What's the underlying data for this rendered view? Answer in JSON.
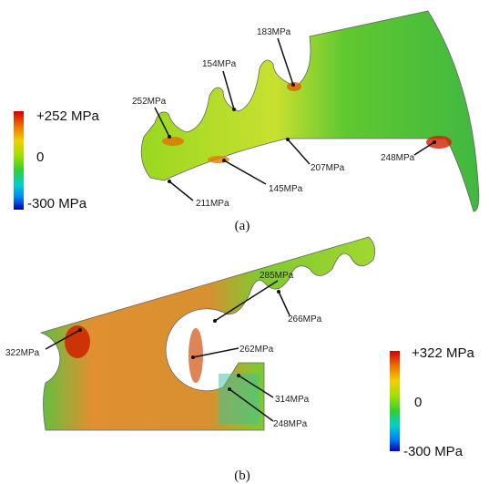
{
  "panels": [
    {
      "label": "(a)",
      "legend": {
        "max": "+252 MPa",
        "mid": "0",
        "min": "-300 MPa"
      },
      "annotations": [
        "252MPa",
        "154MPa",
        "183MPa",
        "248MPa",
        "207MPa",
        "145MPa",
        "211MPa"
      ]
    },
    {
      "label": "(b)",
      "legend": {
        "max": "+322 MPa",
        "mid": "0",
        "min": "-300 MPa"
      },
      "annotations": [
        "285MPa",
        "266MPa",
        "322MPa",
        "262MPa",
        "314MPa",
        "248MPa"
      ]
    }
  ]
}
